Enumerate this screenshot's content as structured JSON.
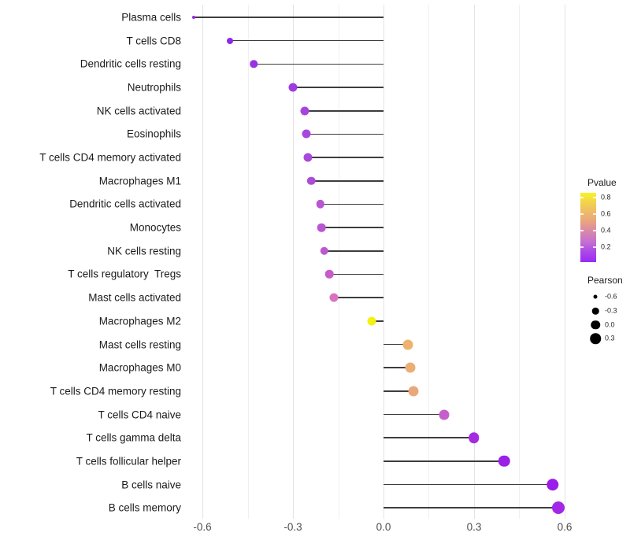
{
  "chart_data": {
    "type": "lollipop",
    "title": "",
    "xlabel": "",
    "ylabel": "",
    "xlim": [
      -0.65,
      0.65
    ],
    "grid": "vertical-light",
    "x_ticks": [
      {
        "label": "-0.6",
        "value": -0.6
      },
      {
        "label": "-0.3",
        "value": -0.3
      },
      {
        "label": "0.0",
        "value": 0.0
      },
      {
        "label": "0.3",
        "value": 0.3
      },
      {
        "label": "0.6",
        "value": 0.6
      }
    ],
    "x_minor_ticks": [
      -0.45,
      -0.15,
      0.15,
      0.45
    ],
    "points": [
      {
        "label": "Plasma cells",
        "pearson": -0.63,
        "pvalue": 0.03,
        "color": "#9726ec",
        "size": 4
      },
      {
        "label": "T cells CD8",
        "pearson": -0.51,
        "pvalue": 0.02,
        "color": "#8f28e9",
        "size": 8
      },
      {
        "label": "Dendritic cells resting",
        "pearson": -0.43,
        "pvalue": 0.05,
        "color": "#9832e5",
        "size": 9.5
      },
      {
        "label": "Neutrophils",
        "pearson": -0.3,
        "pvalue": 0.08,
        "color": "#9f3ce0",
        "size": 11
      },
      {
        "label": "NK cells activated",
        "pearson": -0.26,
        "pvalue": 0.11,
        "color": "#a545dd",
        "size": 11
      },
      {
        "label": "Eosinophils",
        "pearson": -0.255,
        "pvalue": 0.12,
        "color": "#a747dc",
        "size": 11
      },
      {
        "label": "T cells CD4 memory activated",
        "pearson": -0.25,
        "pvalue": 0.12,
        "color": "#a849db",
        "size": 11
      },
      {
        "label": "Macrophages M1",
        "pearson": -0.24,
        "pvalue": 0.14,
        "color": "#ab4dd8",
        "size": 10.5
      },
      {
        "label": "Dendritic cells activated",
        "pearson": -0.21,
        "pvalue": 0.19,
        "color": "#b954d2",
        "size": 10.5
      },
      {
        "label": "Monocytes",
        "pearson": -0.205,
        "pvalue": 0.19,
        "color": "#ba56d1",
        "size": 10.5
      },
      {
        "label": "NK cells resting",
        "pearson": -0.196,
        "pvalue": 0.2,
        "color": "#bd59ce",
        "size": 10.5
      },
      {
        "label": "T cells regulatory  Tregs",
        "pearson": -0.18,
        "pvalue": 0.25,
        "color": "#c75cc8",
        "size": 10.5
      },
      {
        "label": "Mast cells activated",
        "pearson": -0.165,
        "pvalue": 0.33,
        "color": "#da73be",
        "size": 11
      },
      {
        "label": "Macrophages M2",
        "pearson": -0.04,
        "pvalue": 0.85,
        "color": "#f5f112",
        "size": 11
      },
      {
        "label": "Mast cells resting",
        "pearson": 0.08,
        "pvalue": 0.55,
        "color": "#edb36e",
        "size": 13
      },
      {
        "label": "Macrophages M0",
        "pearson": 0.09,
        "pvalue": 0.53,
        "color": "#ebae74",
        "size": 13
      },
      {
        "label": "T cells CD4 memory resting",
        "pearson": 0.1,
        "pvalue": 0.5,
        "color": "#e9a87c",
        "size": 13
      },
      {
        "label": "T cells CD4 naive",
        "pearson": 0.2,
        "pvalue": 0.25,
        "color": "#c65fcb",
        "size": 13
      },
      {
        "label": "T cells gamma delta",
        "pearson": 0.3,
        "pvalue": 0.1,
        "color": "#a52be0",
        "size": 13.5
      },
      {
        "label": "T cells follicular helper",
        "pearson": 0.4,
        "pvalue": 0.05,
        "color": "#9b21e6",
        "size": 14.5
      },
      {
        "label": "B cells naive",
        "pearson": 0.56,
        "pvalue": 0.03,
        "color": "#9a1de9",
        "size": 15.5
      },
      {
        "label": "B cells memory",
        "pearson": 0.58,
        "pvalue": 0.04,
        "color": "#a228e6",
        "size": 16
      }
    ],
    "legend": {
      "position": "right",
      "color": {
        "title": "Pvalue",
        "ticks": [
          "0.8",
          "0.6",
          "0.4",
          "0.2"
        ],
        "range": [
          0.02,
          0.86
        ],
        "gradient_stops": [
          "#f9f321",
          "#f2d14e",
          "#edba69",
          "#e7a183",
          "#d686ae",
          "#c36fd2",
          "#aa46ea",
          "#9b2bf3"
        ]
      },
      "size": {
        "title": "Pearson",
        "entries": [
          {
            "label": "-0.6",
            "diameter": 5
          },
          {
            "label": "-0.3",
            "diameter": 8.5
          },
          {
            "label": "0.0",
            "diameter": 11.5
          },
          {
            "label": "0.3",
            "diameter": 13.5
          }
        ],
        "dot_color": "#000000"
      }
    },
    "colors": {
      "background": "#ffffff",
      "stem": "#3d3d3d",
      "major_grid": "#e3e3e3",
      "minor_grid": "#f0f0f0",
      "axis_text": "#4d4d4d",
      "label_text": "#1a1a1a"
    }
  }
}
